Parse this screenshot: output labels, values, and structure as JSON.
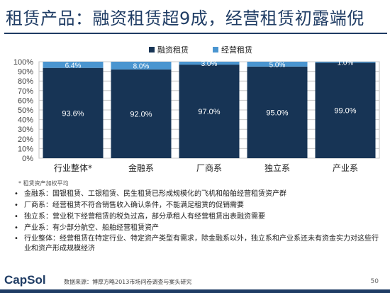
{
  "title": "租赁产品：融资租赁超9成，经营租赁初露端倪",
  "chart_data": {
    "type": "bar",
    "stacked": true,
    "categories": [
      "行业整体*",
      "金融系",
      "厂商系",
      "独立系",
      "产业系"
    ],
    "series": [
      {
        "name": "融资租赁",
        "values": [
          93.6,
          92.0,
          97.0,
          95.0,
          99.0
        ],
        "labels": [
          "93.6%",
          "92.0%",
          "97.0%",
          "95.0%",
          "99.0%"
        ],
        "color": "#173455"
      },
      {
        "name": "经营租赁",
        "values": [
          6.4,
          8.0,
          3.0,
          5.0,
          1.0
        ],
        "labels": [
          "6.4%",
          "8.0%",
          "3.0%",
          "5.0%",
          "1.0%"
        ],
        "color": "#4a95d0"
      }
    ],
    "y_ticks": [
      "0%",
      "10%",
      "20%",
      "30%",
      "40%",
      "50%",
      "60%",
      "70%",
      "80%",
      "90%",
      "100%"
    ],
    "ylim": [
      0,
      100
    ],
    "grid": true,
    "legend_position": "top"
  },
  "note": "* 租赁资产加权平均",
  "bullets": [
    "金融系：国银租赁、工银租赁、民生租赁已形成规模化的飞机和船舶经营租赁资产群",
    "厂商系：经营租赁不符合销售收入确认条件，不能满足租赁的促销需要",
    "独立系：营业税下经营租赁的税负过高，部分承租人有经营租赁出表融资需要",
    "产业系：有少部分航空、船舶经营租赁资产",
    "行业整体：经营租赁在特定行业、特定资产类型有需求，除金融系以外，独立系和产业系还未有资金实力对这些行业和资产形成规模经济"
  ],
  "footer": {
    "logo": "CapSol",
    "source": "数据来源：博厚方略2013市场问卷调查与案头研究",
    "page": "50"
  }
}
